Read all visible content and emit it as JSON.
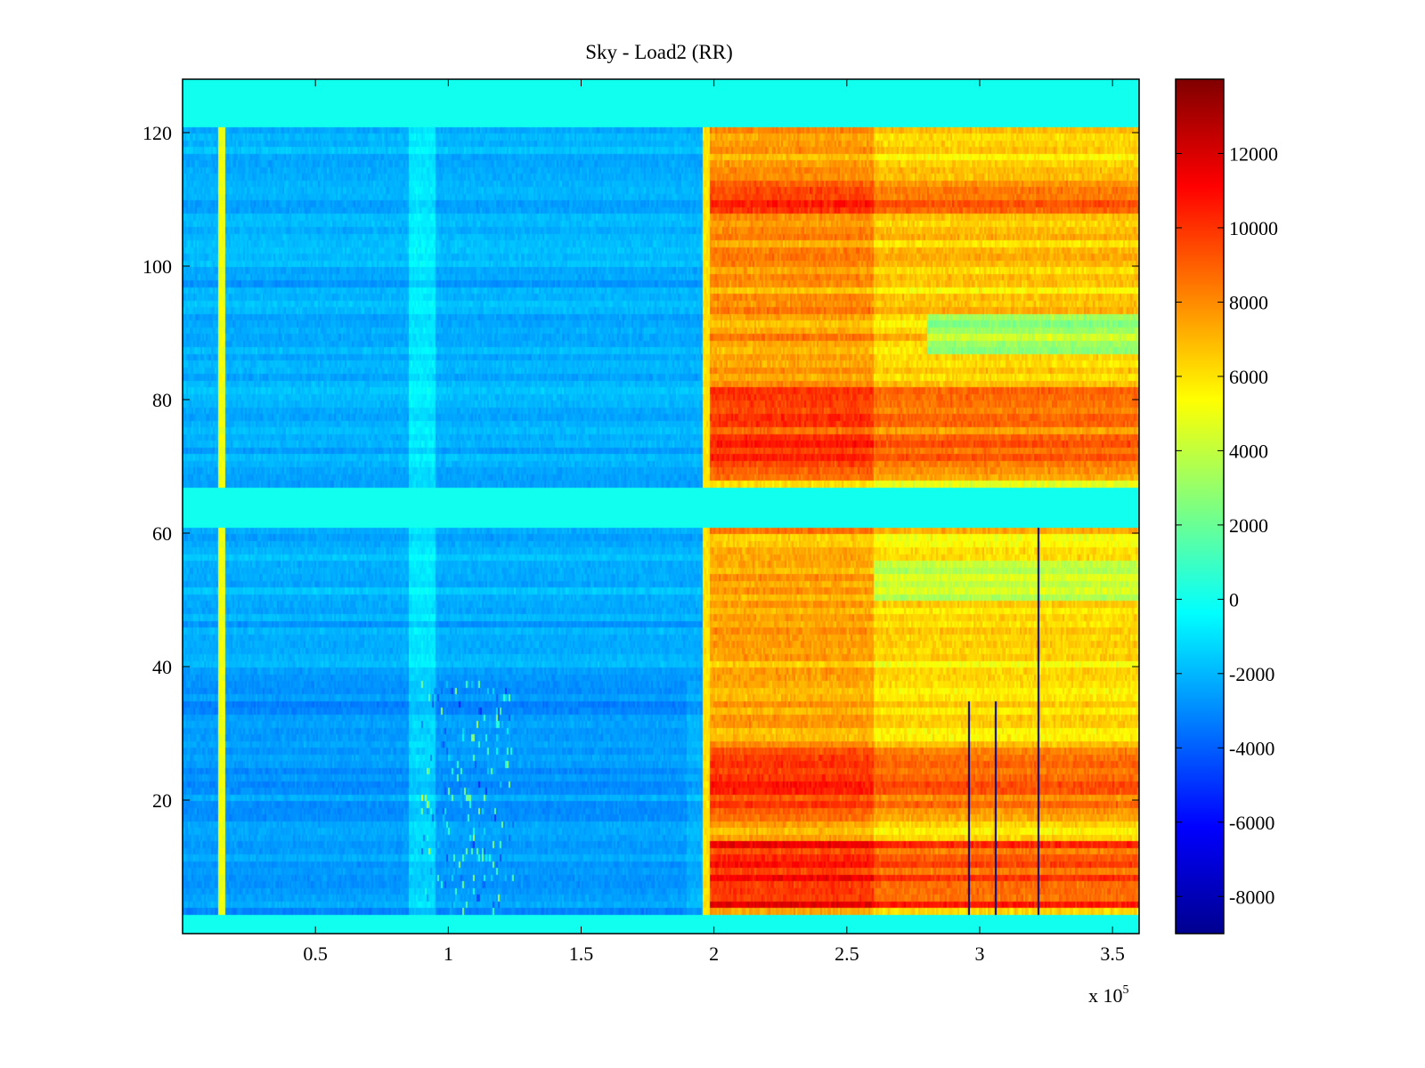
{
  "chart_data": {
    "type": "heatmap",
    "title": "Sky - Load2 (RR)",
    "xlabel": "",
    "ylabel": "",
    "xlim": [
      0,
      360000
    ],
    "ylim": [
      0,
      128
    ],
    "x_exponent_label": "x 10",
    "x_exponent_power": "5",
    "x_ticks": [
      {
        "value": 50000,
        "label": "0.5"
      },
      {
        "value": 100000,
        "label": "1"
      },
      {
        "value": 150000,
        "label": "1.5"
      },
      {
        "value": 200000,
        "label": "2"
      },
      {
        "value": 250000,
        "label": "2.5"
      },
      {
        "value": 300000,
        "label": "3"
      },
      {
        "value": 350000,
        "label": "3.5"
      }
    ],
    "y_ticks": [
      {
        "value": 20,
        "label": "20"
      },
      {
        "value": 40,
        "label": "40"
      },
      {
        "value": 60,
        "label": "60"
      },
      {
        "value": 80,
        "label": "80"
      },
      {
        "value": 100,
        "label": "100"
      },
      {
        "value": 120,
        "label": "120"
      }
    ],
    "colorbar": {
      "colormap": "jet",
      "range": [
        -9000,
        14000
      ],
      "ticks": [
        {
          "value": 12000,
          "label": "12000"
        },
        {
          "value": 10000,
          "label": "10000"
        },
        {
          "value": 8000,
          "label": "8000"
        },
        {
          "value": 6000,
          "label": "6000"
        },
        {
          "value": 4000,
          "label": "4000"
        },
        {
          "value": 2000,
          "label": "2000"
        },
        {
          "value": 0,
          "label": "0"
        },
        {
          "value": -2000,
          "label": "-2000"
        },
        {
          "value": -4000,
          "label": "-4000"
        },
        {
          "value": -6000,
          "label": "-6000"
        },
        {
          "value": -8000,
          "label": "-8000"
        }
      ]
    },
    "empty_row_bands": [
      {
        "y_from": 0,
        "y_to": 3.5,
        "value": 0
      },
      {
        "y_from": 61,
        "y_to": 67,
        "value": 0
      },
      {
        "y_from": 121,
        "y_to": 128,
        "value": 0
      }
    ],
    "regions": [
      {
        "name": "before transition",
        "x_from": 0,
        "x_to": 195000,
        "typical_value": -2200
      },
      {
        "name": "after transition",
        "x_from": 198000,
        "x_to": 360000,
        "typical_value": 7500
      }
    ],
    "bright_columns": [
      {
        "x": 15000,
        "value": 5000
      },
      {
        "x": 197000,
        "value": 6000
      }
    ],
    "hot_bands": [
      {
        "y_from": 4,
        "y_to": 14,
        "x_from": 198000,
        "value": 11500
      },
      {
        "y_from": 18,
        "y_to": 28,
        "x_from": 198000,
        "value": 10500
      },
      {
        "y_from": 68,
        "y_to": 82,
        "x_from": 198000,
        "value": 11000
      },
      {
        "y_from": 108,
        "y_to": 113,
        "x_from": 198000,
        "value": 10500
      }
    ],
    "cool_bands": [
      {
        "y_from": 87,
        "y_to": 93,
        "x_from": 280000,
        "value": 2500
      },
      {
        "y_from": 50,
        "y_to": 56,
        "x_from": 260000,
        "value": 4000
      }
    ],
    "dark_lines": [
      {
        "x": 296000,
        "y_from": 3.5,
        "y_to": 35
      },
      {
        "x": 306000,
        "y_from": 3.5,
        "y_to": 35
      },
      {
        "x": 322000,
        "y_from": 3.5,
        "y_to": 61
      }
    ]
  },
  "colors": {
    "background": "#ffffff",
    "axis": "#000000"
  }
}
